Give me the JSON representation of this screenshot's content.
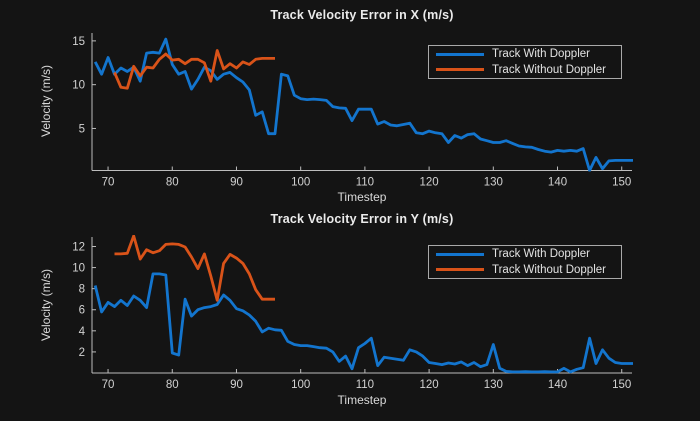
{
  "figure": {
    "background": "#141414",
    "text_color": "#D2D2D2",
    "title_color": "#EBEBEB",
    "axis_color": "#BDBDBD",
    "legend_border_color": "#A9A9A9",
    "blue": "#1375CE",
    "orange": "#D95319"
  },
  "chart_data": [
    {
      "type": "line",
      "title": "Track Velocity Error in X (m/s)",
      "xlabel": "Timestep",
      "ylabel": "Velocity (m/s)",
      "xlim": [
        67.5,
        151.6
      ],
      "ylim": [
        0.2,
        15.9
      ],
      "xticks": [
        70,
        80,
        90,
        100,
        110,
        120,
        130,
        140,
        150
      ],
      "yticks": [
        5,
        10,
        15
      ],
      "grid": false,
      "legend_position": "northeast",
      "series": [
        {
          "name": "Track With Doppler",
          "color": "#1375CE",
          "x_start": 68,
          "x_step": 1,
          "values": [
            12.6,
            11.2,
            13.1,
            11.2,
            11.9,
            11.5,
            12.0,
            10.4,
            13.6,
            13.7,
            13.6,
            15.2,
            12.3,
            11.2,
            11.5,
            9.5,
            10.6,
            12.0,
            11.6,
            10.6,
            11.2,
            11.4,
            10.8,
            10.3,
            9.4,
            6.5,
            6.9,
            4.4,
            4.4,
            11.2,
            11.0,
            8.8,
            8.4,
            8.3,
            8.35,
            8.3,
            8.2,
            7.5,
            7.35,
            7.3,
            5.9,
            7.2,
            7.2,
            7.2,
            5.5,
            5.8,
            5.4,
            5.3,
            5.45,
            5.6,
            4.5,
            4.4,
            4.7,
            4.5,
            4.4,
            3.4,
            4.2,
            3.9,
            4.3,
            4.4,
            3.8,
            3.6,
            3.4,
            3.4,
            3.6,
            3.3,
            3.0,
            2.9,
            2.85,
            2.6,
            2.4,
            2.3,
            2.5,
            2.4,
            2.5,
            2.4,
            2.7,
            0.2,
            1.7,
            0.4,
            1.3,
            1.35,
            1.35,
            1.35,
            1.35
          ]
        },
        {
          "name": "Track Without Doppler",
          "color": "#D95319",
          "x_start": 71,
          "x_step": 1,
          "values": [
            11.4,
            9.7,
            9.6,
            12.1,
            11.0,
            12.0,
            11.9,
            12.9,
            13.5,
            12.8,
            12.9,
            12.4,
            12.9,
            12.9,
            12.5,
            10.4,
            13.9,
            11.8,
            12.4,
            11.9,
            12.6,
            12.3,
            12.9,
            13.0,
            13.0,
            13.0
          ]
        }
      ]
    },
    {
      "type": "line",
      "title": "Track Velocity Error in Y (m/s)",
      "xlabel": "Timestep",
      "ylabel": "Velocity (m/s)",
      "xlim": [
        67.5,
        151.6
      ],
      "ylim": [
        0,
        12.9
      ],
      "xticks": [
        70,
        80,
        90,
        100,
        110,
        120,
        130,
        140,
        150
      ],
      "yticks": [
        2,
        4,
        6,
        8,
        10,
        12
      ],
      "grid": false,
      "legend_position": "northeast",
      "series": [
        {
          "name": "Track With Doppler",
          "color": "#1375CE",
          "x_start": 68,
          "x_step": 1,
          "values": [
            8.3,
            5.8,
            6.7,
            6.3,
            6.9,
            6.4,
            7.3,
            6.9,
            6.2,
            9.4,
            9.4,
            9.3,
            1.9,
            1.7,
            7.0,
            5.4,
            6.0,
            6.2,
            6.3,
            6.5,
            7.4,
            6.9,
            6.1,
            5.9,
            5.5,
            4.9,
            3.9,
            4.25,
            4.1,
            4.05,
            3.0,
            2.7,
            2.6,
            2.6,
            2.5,
            2.4,
            2.35,
            2.0,
            1.1,
            1.6,
            0.4,
            2.4,
            2.8,
            3.3,
            0.7,
            1.5,
            1.4,
            1.3,
            1.2,
            2.2,
            2.0,
            1.6,
            1.0,
            0.9,
            0.8,
            0.95,
            0.85,
            1.05,
            0.7,
            1.0,
            0.6,
            0.8,
            2.7,
            0.45,
            0.15,
            0.1,
            0.1,
            0.12,
            0.1,
            0.1,
            0.12,
            0.1,
            0.1,
            0.45,
            0.1,
            0.35,
            0.5,
            3.3,
            0.9,
            2.2,
            1.4,
            1.0,
            0.9,
            0.9,
            0.9
          ]
        },
        {
          "name": "Track Without Doppler",
          "color": "#D95319",
          "x_start": 71,
          "x_step": 1,
          "values": [
            11.3,
            11.3,
            11.35,
            13.0,
            10.8,
            11.7,
            11.4,
            11.6,
            12.2,
            12.25,
            12.2,
            11.95,
            11.0,
            9.9,
            11.3,
            9.2,
            6.9,
            10.4,
            11.25,
            10.9,
            10.4,
            9.4,
            7.9,
            7.0,
            7.0,
            7.0
          ]
        }
      ]
    }
  ]
}
